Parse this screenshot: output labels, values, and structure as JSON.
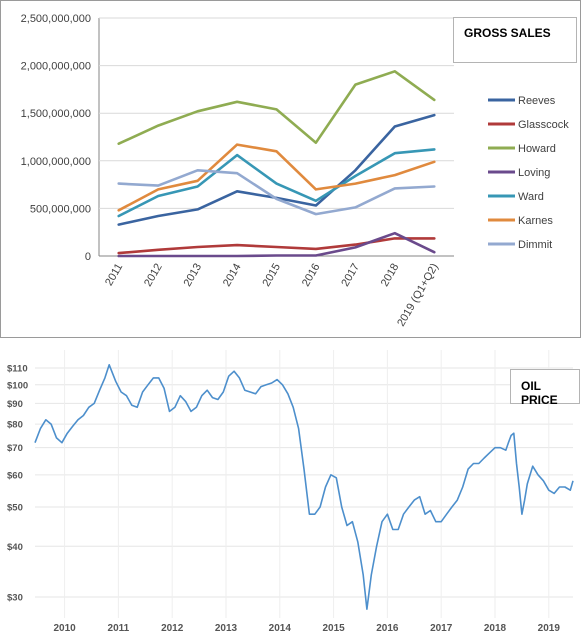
{
  "chart_data": [
    {
      "type": "line",
      "title": "GROSS SALES",
      "categories": [
        "2011",
        "2012",
        "2013",
        "2014",
        "2015",
        "2016",
        "2017",
        "2018",
        "2019 (Q1+Q2)"
      ],
      "yticks": [
        "0",
        "500,000,000",
        "1,000,000,000",
        "1,500,000,000",
        "2,000,000,000",
        "2,500,000,000"
      ],
      "ylim": [
        0,
        2500000000
      ],
      "legend_position": "right",
      "grid": true,
      "series": [
        {
          "name": "Reeves",
          "color": "#3a64a0",
          "values": [
            330000000,
            420000000,
            490000000,
            680000000,
            610000000,
            530000000,
            900000000,
            1360000000,
            1480000000
          ]
        },
        {
          "name": "Glasscock",
          "color": "#b03a3a",
          "values": [
            30000000,
            65000000,
            95000000,
            115000000,
            95000000,
            75000000,
            120000000,
            185000000,
            185000000
          ]
        },
        {
          "name": "Howard",
          "color": "#8fac52",
          "values": [
            1180000000,
            1370000000,
            1520000000,
            1620000000,
            1540000000,
            1190000000,
            1800000000,
            1940000000,
            1640000000
          ]
        },
        {
          "name": "Loving",
          "color": "#6a4a8c",
          "values": [
            0,
            0,
            0,
            0,
            5000000,
            5000000,
            90000000,
            240000000,
            40000000
          ]
        },
        {
          "name": "Ward",
          "color": "#3797b5",
          "values": [
            420000000,
            630000000,
            730000000,
            1060000000,
            760000000,
            580000000,
            840000000,
            1080000000,
            1120000000
          ]
        },
        {
          "name": "Karnes",
          "color": "#e08a3e",
          "values": [
            480000000,
            700000000,
            790000000,
            1170000000,
            1100000000,
            700000000,
            760000000,
            850000000,
            990000000
          ]
        },
        {
          "name": "Dimmit",
          "color": "#93a9d0",
          "values": [
            760000000,
            740000000,
            900000000,
            870000000,
            600000000,
            440000000,
            510000000,
            710000000,
            730000000
          ]
        }
      ]
    },
    {
      "type": "line",
      "title": "OIL PRICE",
      "scale": "log",
      "yticks": [
        {
          "label": "$110",
          "value": 110
        },
        {
          "label": "$100",
          "value": 100
        },
        {
          "label": "$90",
          "value": 90
        },
        {
          "label": "$80",
          "value": 80
        },
        {
          "label": "$70",
          "value": 70
        },
        {
          "label": "$60",
          "value": 60
        },
        {
          "label": "$50",
          "value": 50
        },
        {
          "label": "$40",
          "value": 40
        },
        {
          "label": "$30",
          "value": 30
        }
      ],
      "xticks": [
        {
          "label": "2010",
          "value": 2010.5
        },
        {
          "label": "2011",
          "value": 2011.5
        },
        {
          "label": "2012",
          "value": 2012.5
        },
        {
          "label": "2013",
          "value": 2013.5
        },
        {
          "label": "2014",
          "value": 2014.5
        },
        {
          "label": "2015",
          "value": 2015.5
        },
        {
          "label": "2016",
          "value": 2016.5
        },
        {
          "label": "2017",
          "value": 2017.5
        },
        {
          "label": "2018",
          "value": 2018.5
        },
        {
          "label": "2019",
          "value": 2019.5
        }
      ],
      "xlim": [
        2009.95,
        2019.95
      ],
      "ylim": [
        25,
        118
      ],
      "grid": true,
      "line_color": "#4d8fcc",
      "x": [
        2009.95,
        2010.05,
        2010.15,
        2010.25,
        2010.35,
        2010.45,
        2010.55,
        2010.65,
        2010.75,
        2010.85,
        2010.95,
        2011.05,
        2011.15,
        2011.25,
        2011.33,
        2011.45,
        2011.55,
        2011.65,
        2011.75,
        2011.85,
        2011.95,
        2012.05,
        2012.15,
        2012.25,
        2012.35,
        2012.45,
        2012.55,
        2012.65,
        2012.75,
        2012.85,
        2012.95,
        2013.05,
        2013.15,
        2013.25,
        2013.35,
        2013.45,
        2013.55,
        2013.65,
        2013.75,
        2013.85,
        2013.95,
        2014.05,
        2014.15,
        2014.25,
        2014.35,
        2014.45,
        2014.55,
        2014.65,
        2014.75,
        2014.85,
        2014.95,
        2015.05,
        2015.15,
        2015.25,
        2015.35,
        2015.45,
        2015.55,
        2015.65,
        2015.75,
        2015.85,
        2015.95,
        2016.05,
        2016.12,
        2016.2,
        2016.3,
        2016.4,
        2016.5,
        2016.6,
        2016.7,
        2016.8,
        2016.9,
        2017.0,
        2017.1,
        2017.2,
        2017.3,
        2017.4,
        2017.5,
        2017.6,
        2017.7,
        2017.8,
        2017.9,
        2018.0,
        2018.1,
        2018.2,
        2018.3,
        2018.4,
        2018.5,
        2018.6,
        2018.7,
        2018.75,
        2018.8,
        2018.85,
        2018.9,
        2018.95,
        2019.0,
        2019.05,
        2019.1,
        2019.2,
        2019.3,
        2019.4,
        2019.5,
        2019.6,
        2019.7,
        2019.8,
        2019.9,
        2019.95
      ],
      "y": [
        72,
        78,
        82,
        80,
        74,
        72,
        76,
        79,
        82,
        84,
        88,
        90,
        97,
        104,
        112,
        102,
        96,
        94,
        89,
        88,
        96,
        100,
        104,
        104,
        98,
        86,
        88,
        94,
        91,
        86,
        88,
        94,
        97,
        93,
        92,
        96,
        105,
        108,
        104,
        97,
        96,
        95,
        99,
        100,
        101,
        103,
        100,
        95,
        88,
        78,
        62,
        48,
        48,
        50,
        56,
        60,
        59,
        50,
        45,
        46,
        41,
        34,
        28,
        34,
        40,
        46,
        48,
        44,
        44,
        48,
        50,
        52,
        53,
        48,
        49,
        46,
        46,
        48,
        50,
        52,
        56,
        62,
        64,
        64,
        66,
        68,
        70,
        70,
        69,
        72,
        75,
        76,
        64,
        56,
        48,
        52,
        57,
        63,
        60,
        58,
        55,
        54,
        56,
        56,
        55,
        58
      ]
    }
  ]
}
